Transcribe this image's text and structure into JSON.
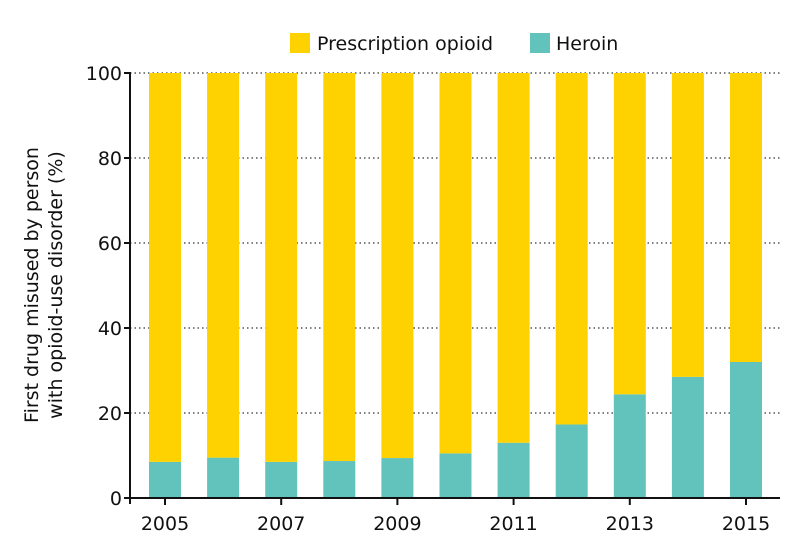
{
  "chart_data": {
    "type": "bar",
    "stacked": true,
    "title": "",
    "xlabel": "",
    "ylabel_lines": [
      "First drug misused by person",
      "with opioid-use disorder (%)"
    ],
    "ylim": [
      0,
      100
    ],
    "yticks": [
      0,
      20,
      40,
      60,
      80,
      100
    ],
    "grid": "horizontal dotted",
    "legend_placement": "top",
    "categories": [
      "2005",
      "2006",
      "2007",
      "2008",
      "2009",
      "2010",
      "2011",
      "2012",
      "2013",
      "2014",
      "2015"
    ],
    "xtick_labels": [
      "2005",
      "",
      "2007",
      "",
      "2009",
      "",
      "2011",
      "",
      "2013",
      "",
      "2015"
    ],
    "series": [
      {
        "name": "Heroin",
        "color": "#62c3bd",
        "values": [
          8.5,
          9.5,
          8.5,
          8.7,
          9.4,
          10.5,
          13,
          17.3,
          24.4,
          28.5,
          32
        ]
      },
      {
        "name": "Prescription opioid",
        "color": "#fdd200",
        "values": [
          91.5,
          90.5,
          91.5,
          91.3,
          90.6,
          89.5,
          87,
          82.7,
          75.6,
          71.5,
          68
        ]
      }
    ],
    "legend_order": [
      "Prescription opioid",
      "Heroin"
    ]
  }
}
